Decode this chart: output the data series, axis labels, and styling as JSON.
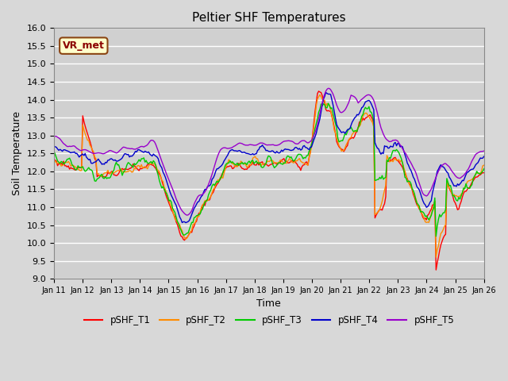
{
  "title": "Peltier SHF Temperatures",
  "xlabel": "Time",
  "ylabel": "Soil Temperature",
  "ylim": [
    9.0,
    16.0
  ],
  "yticks": [
    9.0,
    9.5,
    10.0,
    10.5,
    11.0,
    11.5,
    12.0,
    12.5,
    13.0,
    13.5,
    14.0,
    14.5,
    15.0,
    15.5,
    16.0
  ],
  "colors": {
    "pSHF_T1": "#ff0000",
    "pSHF_T2": "#ff8c00",
    "pSHF_T3": "#00cc00",
    "pSHF_T4": "#0000cc",
    "pSHF_T5": "#9900cc"
  },
  "legend_entries": [
    "pSHF_T1",
    "pSHF_T2",
    "pSHF_T3",
    "pSHF_T4",
    "pSHF_T5"
  ],
  "vr_met_label": "VR_met",
  "bg_color": "#d8d8d8",
  "plot_bg_color": "#d0d0d0",
  "grid_color": "#ffffff",
  "n_points": 360,
  "x_start_day": 11,
  "x_end_day": 26,
  "xtick_days": [
    11,
    12,
    13,
    14,
    15,
    16,
    17,
    18,
    19,
    20,
    21,
    22,
    23,
    24,
    25,
    26
  ]
}
